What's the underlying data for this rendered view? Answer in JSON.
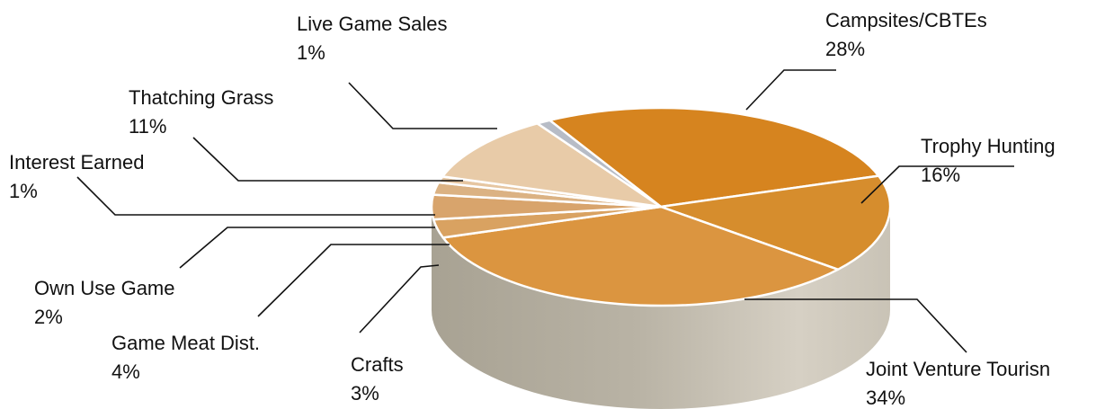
{
  "chart_data": {
    "type": "pie",
    "style": "3d",
    "legend": "none",
    "categories": [
      "Campsites/CBTEs",
      "Trophy Hunting",
      "Joint Venture Tourisn",
      "Crafts",
      "Game Meat Dist.",
      "Own Use Game",
      "Interest Earned",
      "Thatching Grass",
      "Live Game Sales"
    ],
    "values": [
      28,
      16,
      34,
      3,
      4,
      2,
      1,
      11,
      1
    ],
    "labels": [
      "28%",
      "16%",
      "34%",
      "3%",
      "4%",
      "2%",
      "1%",
      "11%",
      "1%"
    ],
    "colors": [
      "#d6841f",
      "#d68d2d",
      "#db9540",
      "#d9a261",
      "#d8a46c",
      "#dbb283",
      "#e6c6a1",
      "#e8cba8",
      "#b7bcc6"
    ]
  }
}
